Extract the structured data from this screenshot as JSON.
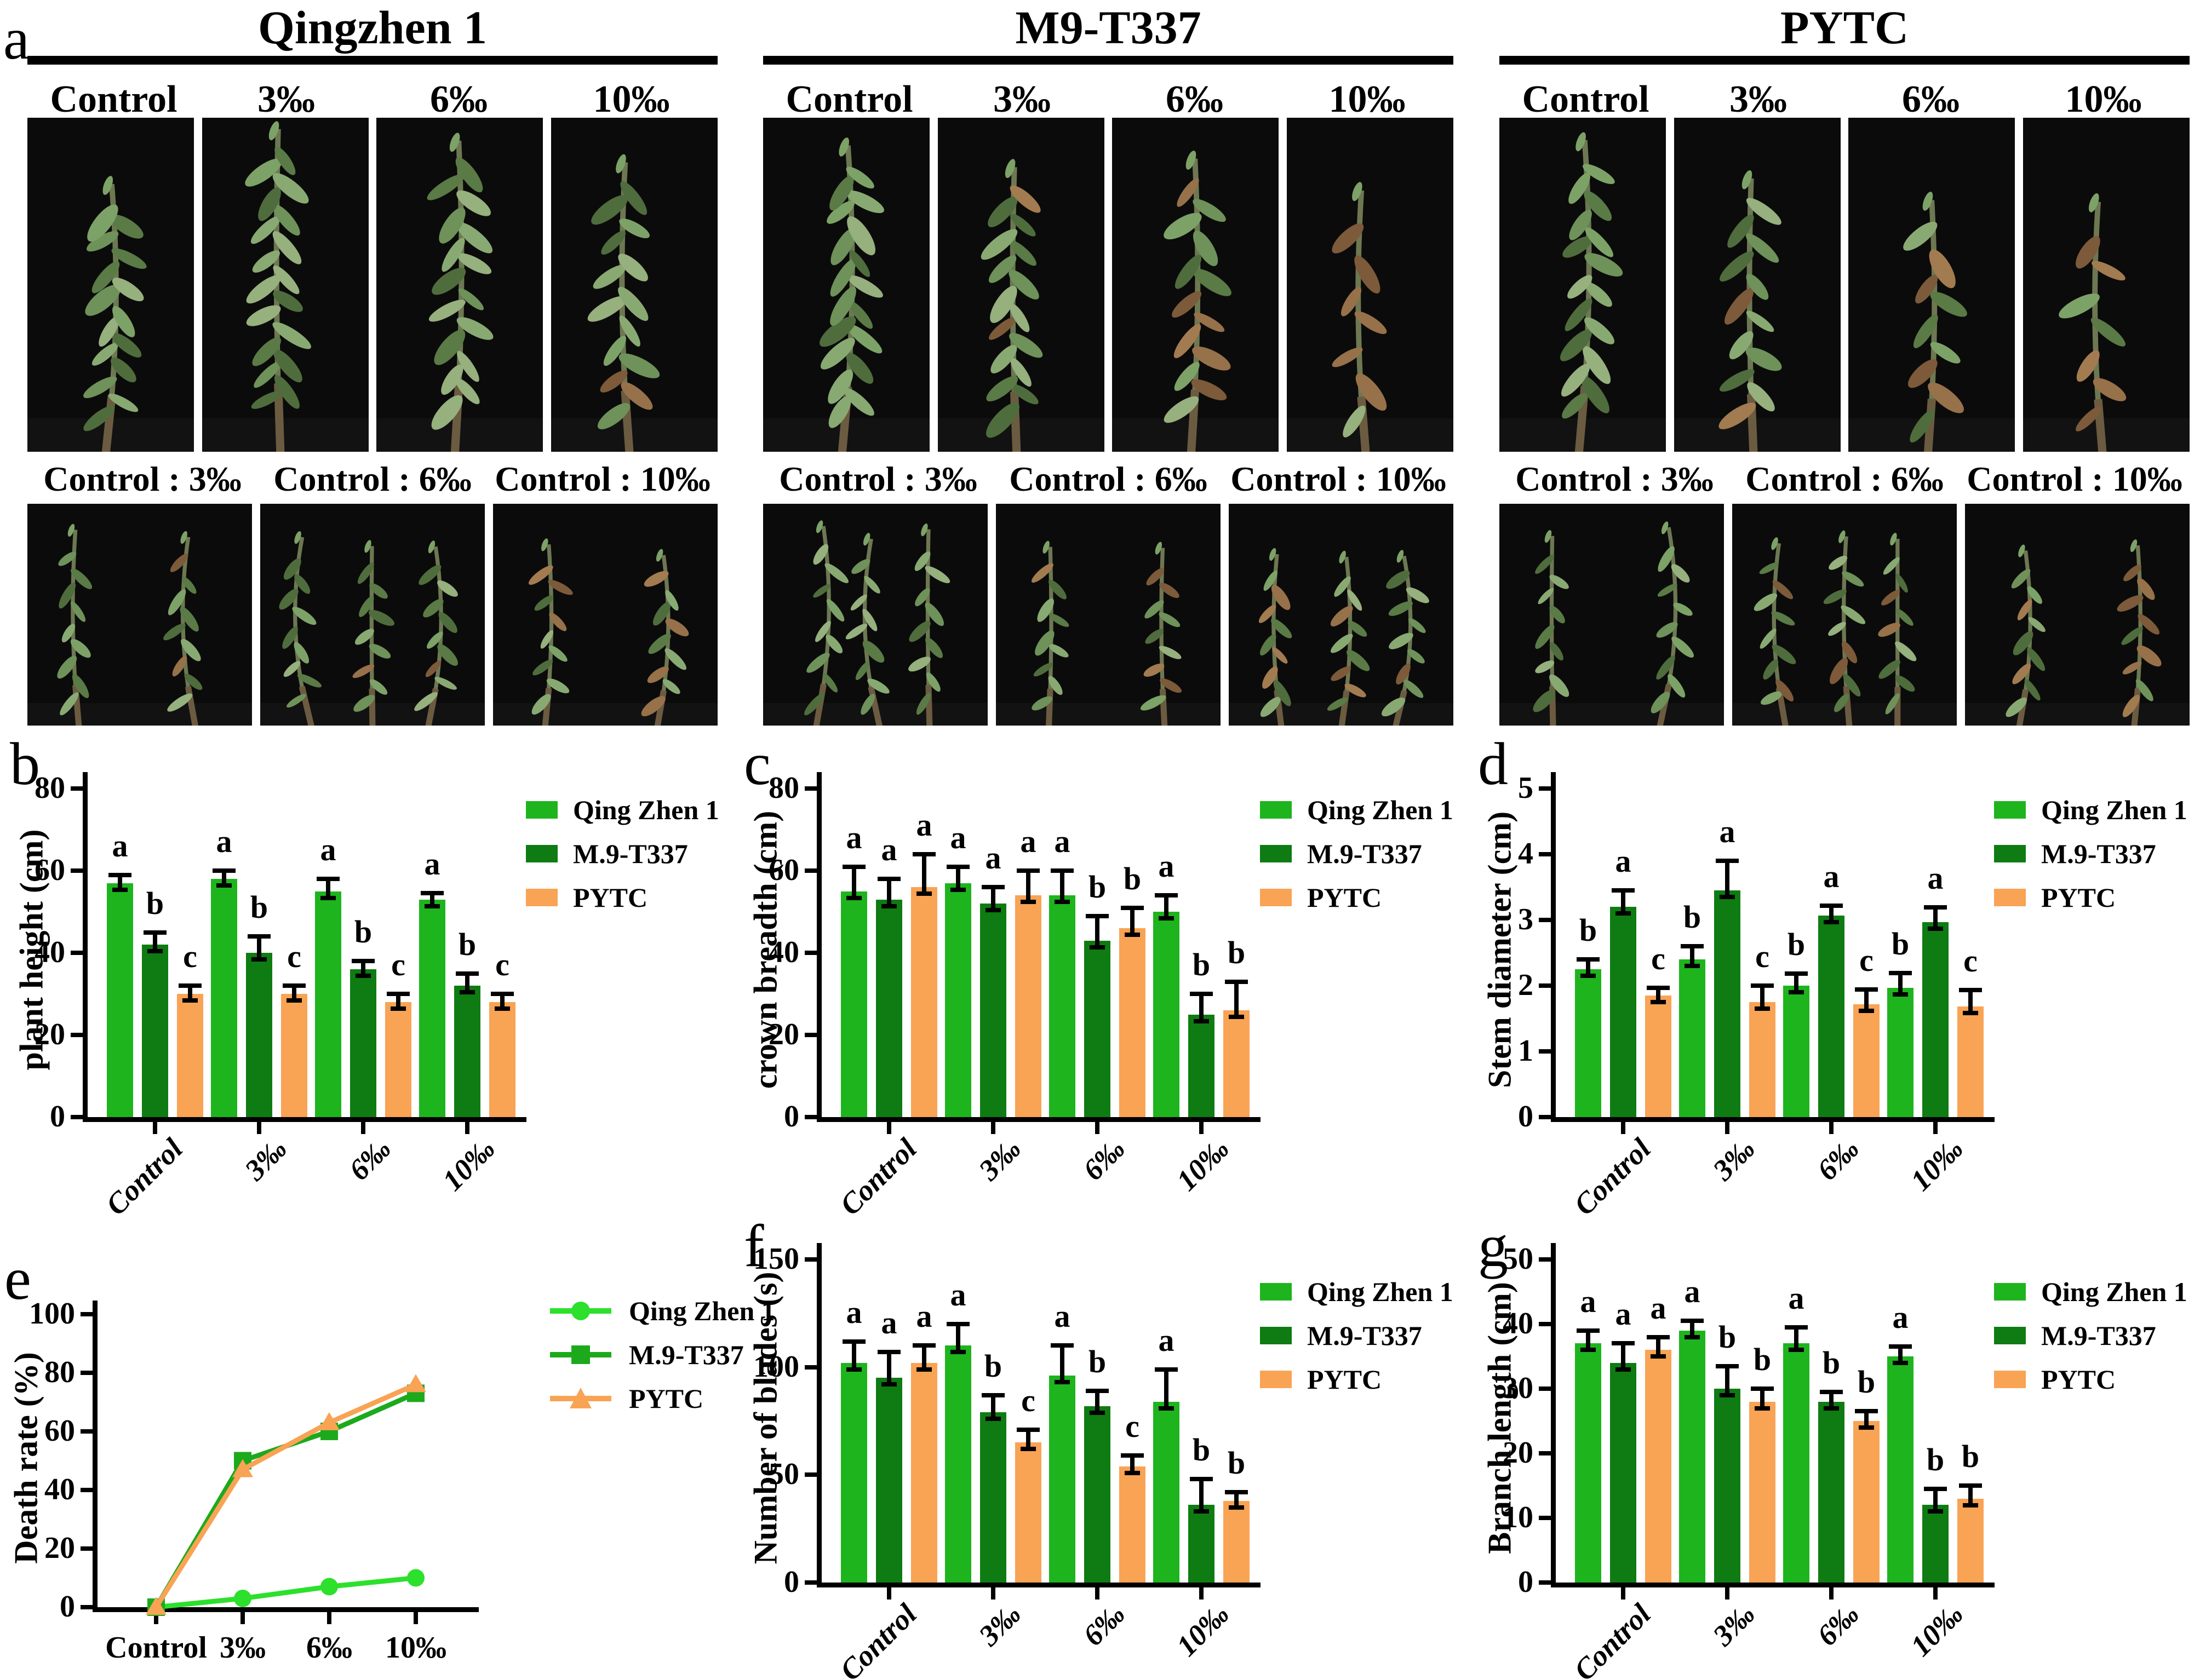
{
  "panel_a": {
    "letter": "a",
    "sections": [
      {
        "title": "Qingzhen 1",
        "columns": [
          "Control",
          "3‰",
          "6‰",
          "10‰"
        ],
        "pairs": [
          "Control : 3‰",
          "Control : 6‰",
          "Control : 10‰"
        ]
      },
      {
        "title": "M9-T337",
        "columns": [
          "Control",
          "3‰",
          "6‰",
          "10‰"
        ],
        "pairs": [
          "Control : 3‰",
          "Control : 6‰",
          "Control : 10‰"
        ]
      },
      {
        "title": "PYTC",
        "columns": [
          "Control",
          "3‰",
          "6‰",
          "10‰"
        ],
        "pairs": [
          "Control : 3‰",
          "Control : 6‰",
          "Control : 10‰"
        ]
      }
    ]
  },
  "colors": {
    "qingzhen1_bar": "#1eb41e",
    "m9_bar": "#0e7c12",
    "pytc_bar": "#f9a355",
    "qingzhen1_line": "#2ce02c",
    "m9_line": "#1caa1c",
    "pytc_line": "#f9a355",
    "axis": "#000000"
  },
  "chart_data": [
    {
      "panel": "b",
      "type": "bar",
      "ylabel": "plant height  (cm)",
      "ymax": 80,
      "yticks": [
        0,
        20,
        40,
        60,
        80
      ],
      "categories": [
        "Control",
        "3‰",
        "6‰",
        "10‰"
      ],
      "legend_position": "right",
      "series": [
        {
          "name": "Qing Zhen 1",
          "color": "#1eb41e",
          "values": [
            57,
            58,
            55,
            53
          ],
          "errors": [
            2,
            2,
            3,
            1.5
          ],
          "letters": [
            "a",
            "a",
            "a",
            "a"
          ]
        },
        {
          "name": "M.9-T337",
          "color": "#0e7c12",
          "values": [
            42,
            40,
            36,
            32
          ],
          "errors": [
            3,
            4,
            2,
            3
          ],
          "letters": [
            "b",
            "b",
            "b",
            "b"
          ]
        },
        {
          "name": "PYTC",
          "color": "#f9a355",
          "values": [
            30,
            30,
            28,
            28
          ],
          "errors": [
            2,
            2,
            2,
            2
          ],
          "letters": [
            "c",
            "c",
            "c",
            "c"
          ]
        }
      ]
    },
    {
      "panel": "c",
      "type": "bar",
      "ylabel": "crown breadth (cm)",
      "ymax": 80,
      "yticks": [
        0,
        20,
        40,
        60,
        80
      ],
      "categories": [
        "Control",
        "3‰",
        "6‰",
        "10‰"
      ],
      "legend_position": "right",
      "series": [
        {
          "name": "Qing Zhen 1",
          "color": "#1eb41e",
          "values": [
            55,
            57,
            54,
            50
          ],
          "errors": [
            6,
            4,
            6,
            4
          ],
          "letters": [
            "a",
            "a",
            "a",
            "a"
          ]
        },
        {
          "name": "M.9-T337",
          "color": "#0e7c12",
          "values": [
            53,
            52,
            43,
            25
          ],
          "errors": [
            5,
            4,
            6,
            5
          ],
          "letters": [
            "a",
            "a",
            "b",
            "b"
          ]
        },
        {
          "name": "PYTC",
          "color": "#f9a355",
          "values": [
            56,
            54,
            46,
            26
          ],
          "errors": [
            8,
            6,
            5,
            7
          ],
          "letters": [
            "a",
            "a",
            "b",
            "b"
          ]
        }
      ]
    },
    {
      "panel": "d",
      "type": "bar",
      "ylabel": "Stem diameter (cm)",
      "ymax": 5,
      "yticks": [
        0,
        1,
        2,
        3,
        4,
        5
      ],
      "categories": [
        "Control",
        "3‰",
        "6‰",
        "10‰"
      ],
      "legend_position": "right",
      "series": [
        {
          "name": "Qing Zhen 1",
          "color": "#1eb41e",
          "values": [
            2.25,
            2.4,
            2.0,
            1.97
          ],
          "errors": [
            0.15,
            0.2,
            0.18,
            0.22
          ],
          "letters": [
            "b",
            "b",
            "b",
            "b"
          ]
        },
        {
          "name": "M.9-T337",
          "color": "#0e7c12",
          "values": [
            3.2,
            3.45,
            3.07,
            2.97
          ],
          "errors": [
            0.25,
            0.45,
            0.15,
            0.22
          ],
          "letters": [
            "a",
            "a",
            "a",
            "a"
          ]
        },
        {
          "name": "PYTC",
          "color": "#f9a355",
          "values": [
            1.85,
            1.75,
            1.72,
            1.68
          ],
          "errors": [
            0.12,
            0.25,
            0.22,
            0.25
          ],
          "letters": [
            "c",
            "c",
            "c",
            "c"
          ]
        }
      ]
    },
    {
      "panel": "e",
      "type": "line",
      "ylabel": "Death rate (%)",
      "ymax": 100,
      "yticks": [
        0,
        20,
        40,
        60,
        80,
        100
      ],
      "categories": [
        "Control",
        "3‰",
        "6‰",
        "10‰"
      ],
      "legend_position": "right",
      "series": [
        {
          "name": "Qing Zhen 1",
          "color": "#2ce02c",
          "marker": "circle",
          "values": [
            0,
            3,
            7,
            10
          ]
        },
        {
          "name": "M.9-T337",
          "color": "#1caa1c",
          "marker": "square",
          "values": [
            0,
            50,
            60,
            73
          ]
        },
        {
          "name": "PYTC",
          "color": "#f9a355",
          "marker": "triangle",
          "values": [
            0,
            47,
            63,
            76
          ]
        }
      ]
    },
    {
      "panel": "f",
      "type": "bar",
      "ylabel": "Number of blades (s)",
      "ymax": 150,
      "yticks": [
        0,
        50,
        100,
        150
      ],
      "categories": [
        "Control",
        "3‰",
        "6‰",
        "10‰"
      ],
      "legend_position": "right",
      "series": [
        {
          "name": "Qing Zhen 1",
          "color": "#1eb41e",
          "values": [
            102,
            110,
            96,
            84
          ],
          "errors": [
            10,
            10,
            14,
            15
          ],
          "letters": [
            "a",
            "a",
            "a",
            "a"
          ]
        },
        {
          "name": "M.9-T337",
          "color": "#0e7c12",
          "values": [
            95,
            79,
            82,
            36
          ],
          "errors": [
            12,
            8,
            7,
            12
          ],
          "letters": [
            "a",
            "b",
            "b",
            "b"
          ]
        },
        {
          "name": "PYTC",
          "color": "#f9a355",
          "values": [
            102,
            65,
            54,
            38
          ],
          "errors": [
            8,
            6,
            5,
            4
          ],
          "letters": [
            "a",
            "c",
            "c",
            "b"
          ]
        }
      ]
    },
    {
      "panel": "g",
      "type": "bar",
      "ylabel": "Branch length (cm)",
      "ymax": 50,
      "yticks": [
        0,
        10,
        20,
        30,
        40,
        50
      ],
      "categories": [
        "Control",
        "3‰",
        "6‰",
        "10‰"
      ],
      "legend_position": "right",
      "series": [
        {
          "name": "Qing Zhen 1",
          "color": "#1eb41e",
          "values": [
            37,
            39,
            37,
            35
          ],
          "errors": [
            2,
            1.5,
            2.5,
            1.5
          ],
          "letters": [
            "a",
            "a",
            "a",
            "a"
          ]
        },
        {
          "name": "M.9-T337",
          "color": "#0e7c12",
          "values": [
            34,
            30,
            28,
            12
          ],
          "errors": [
            3,
            3.5,
            1.5,
            2.5
          ],
          "letters": [
            "a",
            "b",
            "b",
            "b"
          ]
        },
        {
          "name": "PYTC",
          "color": "#f9a355",
          "values": [
            36,
            28,
            25,
            13
          ],
          "errors": [
            2,
            2,
            1.5,
            2
          ],
          "letters": [
            "a",
            "b",
            "b",
            "b"
          ]
        }
      ]
    }
  ]
}
